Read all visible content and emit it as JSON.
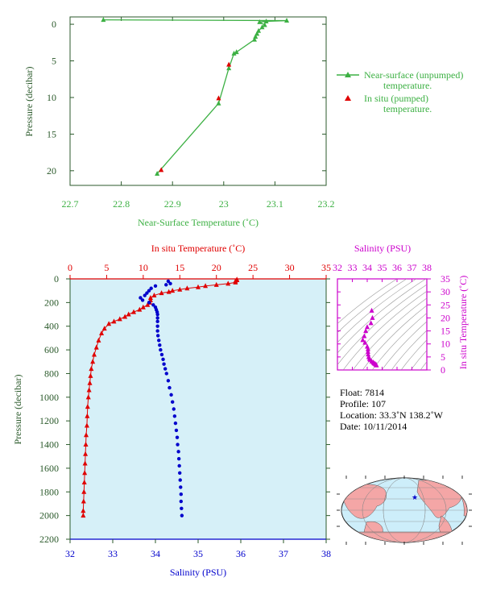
{
  "colors": {
    "green": "#3cb043",
    "red": "#e00000",
    "blue": "#0000cc",
    "magenta": "#cc00cc",
    "darkgreen": "#2b5a2b",
    "panel_bg": "#d6f0f8",
    "land": "#f4a6a6",
    "ocean": "#cdeefa"
  },
  "chart_data": [
    {
      "id": "near_surface",
      "type": "line",
      "xlabel": "Near-Surface Temperature (˚C)",
      "ylabel": "Pressure (decibar)",
      "xlim": [
        22.7,
        23.2
      ],
      "ylim": [
        22,
        -1
      ],
      "xticks": [
        "22.7",
        "22.8",
        "22.9",
        "23",
        "23.1",
        "23.2"
      ],
      "yticks": [
        "0",
        "5",
        "10",
        "15",
        "20"
      ],
      "legend_placement": "right",
      "series": [
        {
          "name": "Near-surface (unpumped) temperature.",
          "points": [
            [
              22.765,
              -0.6
            ],
            [
              23.123,
              -0.5
            ],
            [
              23.083,
              -0.4
            ],
            [
              23.07,
              -0.3
            ],
            [
              23.08,
              0.1
            ],
            [
              23.075,
              0.4
            ],
            [
              23.068,
              0.9
            ],
            [
              23.065,
              1.3
            ],
            [
              23.062,
              1.7
            ],
            [
              23.06,
              2.1
            ],
            [
              23.025,
              3.8
            ],
            [
              23.02,
              4.0
            ],
            [
              23.01,
              6.0
            ],
            [
              22.99,
              10.8
            ],
            [
              22.87,
              20.4
            ]
          ]
        },
        {
          "name": "In situ (pumped) temperature.",
          "points": [
            [
              23.01,
              5.5
            ],
            [
              22.99,
              10.1
            ],
            [
              22.878,
              19.9
            ]
          ]
        }
      ]
    },
    {
      "id": "profile",
      "type": "line",
      "x_top_label": "In situ Temperature (˚C)",
      "x_bottom_label": "Salinity (PSU)",
      "ylabel": "Pressure (decibar)",
      "temperature_xlim": [
        0,
        35
      ],
      "salinity_xlim": [
        32,
        38
      ],
      "ylim": [
        2200,
        0
      ],
      "temperature_ticks": [
        "0",
        "5",
        "10",
        "15",
        "20",
        "25",
        "30",
        "35"
      ],
      "salinity_ticks": [
        "32",
        "33",
        "34",
        "35",
        "36",
        "37",
        "38"
      ],
      "pressure_ticks": [
        "0",
        "200",
        "400",
        "600",
        "800",
        "1000",
        "1200",
        "1400",
        "1600",
        "1800",
        "2000",
        "2200"
      ],
      "temperature_series": [
        [
          22.8,
          5
        ],
        [
          22.8,
          10
        ],
        [
          22.6,
          20
        ],
        [
          22.6,
          30
        ],
        [
          21.6,
          40
        ],
        [
          20,
          50
        ],
        [
          18.5,
          60
        ],
        [
          17.5,
          70
        ],
        [
          16,
          80
        ],
        [
          15,
          90
        ],
        [
          14,
          100
        ],
        [
          13.5,
          110
        ],
        [
          12.5,
          120
        ],
        [
          11.5,
          140
        ],
        [
          11,
          160
        ],
        [
          11,
          180
        ],
        [
          10.9,
          200
        ],
        [
          10.6,
          220
        ],
        [
          10,
          240
        ],
        [
          9.5,
          260
        ],
        [
          8.7,
          280
        ],
        [
          8,
          300
        ],
        [
          7.5,
          320
        ],
        [
          6.8,
          340
        ],
        [
          6,
          360
        ],
        [
          5.3,
          380
        ],
        [
          4.7,
          420
        ],
        [
          4.3,
          460
        ],
        [
          3.9,
          520
        ],
        [
          3.6,
          580
        ],
        [
          3.3,
          640
        ],
        [
          3.1,
          700
        ],
        [
          2.9,
          760
        ],
        [
          2.8,
          820
        ],
        [
          2.7,
          880
        ],
        [
          2.6,
          940
        ],
        [
          2.5,
          1000
        ],
        [
          2.4,
          1080
        ],
        [
          2.35,
          1160
        ],
        [
          2.3,
          1240
        ],
        [
          2.2,
          1320
        ],
        [
          2.15,
          1400
        ],
        [
          2.1,
          1480
        ],
        [
          2.05,
          1560
        ],
        [
          2.0,
          1640
        ],
        [
          1.95,
          1720
        ],
        [
          1.9,
          1800
        ],
        [
          1.85,
          1880
        ],
        [
          1.8,
          1960
        ],
        [
          1.8,
          2000
        ]
      ],
      "salinity_series": [
        [
          34.3,
          20
        ],
        [
          34.35,
          40
        ],
        [
          34.25,
          50
        ],
        [
          34.0,
          60
        ],
        [
          33.9,
          80
        ],
        [
          33.85,
          100
        ],
        [
          33.8,
          120
        ],
        [
          33.75,
          140
        ],
        [
          33.65,
          160
        ],
        [
          33.7,
          180
        ],
        [
          33.85,
          200
        ],
        [
          33.95,
          220
        ],
        [
          34.0,
          240
        ],
        [
          34.02,
          260
        ],
        [
          34.04,
          280
        ],
        [
          34.05,
          300
        ],
        [
          34.05,
          330
        ],
        [
          34.05,
          360
        ],
        [
          34.05,
          400
        ],
        [
          34.05,
          440
        ],
        [
          34.06,
          480
        ],
        [
          34.08,
          520
        ],
        [
          34.1,
          560
        ],
        [
          34.12,
          600
        ],
        [
          34.15,
          640
        ],
        [
          34.18,
          680
        ],
        [
          34.2,
          720
        ],
        [
          34.23,
          760
        ],
        [
          34.26,
          800
        ],
        [
          34.3,
          860
        ],
        [
          34.33,
          920
        ],
        [
          34.37,
          980
        ],
        [
          34.4,
          1040
        ],
        [
          34.43,
          1100
        ],
        [
          34.45,
          1160
        ],
        [
          34.47,
          1220
        ],
        [
          34.49,
          1280
        ],
        [
          34.51,
          1340
        ],
        [
          34.52,
          1400
        ],
        [
          34.54,
          1460
        ],
        [
          34.55,
          1520
        ],
        [
          34.56,
          1580
        ],
        [
          34.57,
          1640
        ],
        [
          34.58,
          1700
        ],
        [
          34.59,
          1760
        ],
        [
          34.6,
          1820
        ],
        [
          34.6,
          1880
        ],
        [
          34.61,
          1940
        ],
        [
          34.62,
          2000
        ]
      ]
    },
    {
      "id": "ts_diagram",
      "type": "scatter",
      "xlabel": "Salinity (PSU)",
      "ylabel": "In situ Temperature (˚C)",
      "xlim": [
        32,
        38
      ],
      "ylim": [
        0,
        35
      ],
      "xticks": [
        "32",
        "33",
        "34",
        "35",
        "36",
        "37",
        "38"
      ],
      "yticks": [
        "0",
        "5",
        "10",
        "15",
        "20",
        "25",
        "30",
        "35"
      ],
      "points": [
        [
          34.3,
          22.8
        ],
        [
          34.35,
          20
        ],
        [
          34.25,
          18
        ],
        [
          34.0,
          16.5
        ],
        [
          33.9,
          15
        ],
        [
          33.8,
          13
        ],
        [
          33.7,
          11.5
        ],
        [
          33.85,
          10.5
        ],
        [
          34.0,
          9
        ],
        [
          34.05,
          8
        ],
        [
          34.05,
          7
        ],
        [
          34.06,
          6
        ],
        [
          34.1,
          5
        ],
        [
          34.15,
          4.3
        ],
        [
          34.2,
          3.9
        ],
        [
          34.3,
          3.3
        ],
        [
          34.4,
          2.9
        ],
        [
          34.45,
          2.6
        ],
        [
          34.5,
          2.4
        ],
        [
          34.55,
          2.2
        ],
        [
          34.6,
          2.0
        ],
        [
          34.62,
          1.8
        ]
      ]
    }
  ],
  "info": {
    "float": "Float:  7814",
    "profile": "Profile:  107",
    "location": "Location:  33.3˚N  138.2˚W",
    "date": "Date:  10/11/2014"
  },
  "map": {
    "marker_label": "★"
  },
  "footer": "  "
}
